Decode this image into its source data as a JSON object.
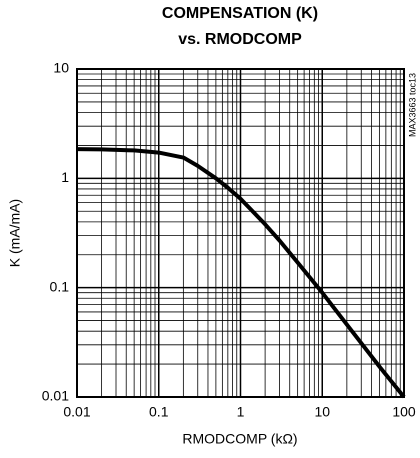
{
  "chart_data": {
    "type": "line",
    "title": "COMPENSATION (K)",
    "subtitle": "vs. RMODCOMP",
    "x_label": "RMODCOMP (kΩ)",
    "y_label": "K (mA/mA)",
    "annotation": "MAX3663 toc13",
    "x": [
      0.01,
      0.02,
      0.05,
      0.1,
      0.2,
      0.3,
      0.5,
      0.7,
      1,
      2,
      3,
      5,
      10,
      20,
      50,
      100
    ],
    "series": [
      {
        "color": "#000000",
        "values": [
          1.85,
          1.84,
          1.8,
          1.72,
          1.55,
          1.3,
          1.0,
          0.82,
          0.65,
          0.38,
          0.27,
          0.17,
          0.09,
          0.046,
          0.019,
          0.01
        ]
      }
    ],
    "xlim": [
      0.01,
      100
    ],
    "ylim": [
      0.01,
      10
    ],
    "xticks": [
      0.01,
      0.1,
      1,
      10,
      100
    ],
    "yticks": [
      0.01,
      0.1,
      1,
      10
    ],
    "xscale": "log",
    "yscale": "log",
    "grid": true,
    "minor_grid": true
  }
}
